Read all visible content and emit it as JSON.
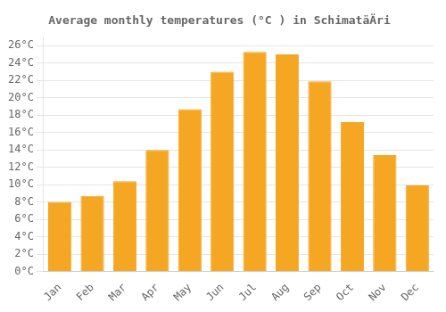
{
  "chart_data": {
    "type": "bar",
    "title": "Average monthly temperatures (°C ) in SchimatäÄri",
    "categories": [
      "Jan",
      "Feb",
      "Mar",
      "Apr",
      "May",
      "Jun",
      "Jul",
      "Aug",
      "Sep",
      "Oct",
      "Nov",
      "Dec"
    ],
    "values": [
      8.0,
      8.7,
      10.4,
      14.0,
      18.7,
      23.0,
      25.3,
      25.0,
      21.9,
      17.2,
      13.4,
      9.9
    ],
    "color": "#F5A623",
    "ylim": [
      0,
      27
    ],
    "yticks": [
      {
        "value": 0,
        "label": "0°C"
      },
      {
        "value": 2,
        "label": "2°C"
      },
      {
        "value": 4,
        "label": "4°C"
      },
      {
        "value": 6,
        "label": "6°C"
      },
      {
        "value": 8,
        "label": "8°C"
      },
      {
        "value": 10,
        "label": "10°C"
      },
      {
        "value": 12,
        "label": "12°C"
      },
      {
        "value": 14,
        "label": "14°C"
      },
      {
        "value": 16,
        "label": "16°C"
      },
      {
        "value": 18,
        "label": "18°C"
      },
      {
        "value": 20,
        "label": "20°C"
      },
      {
        "value": 22,
        "label": "22°C"
      },
      {
        "value": 24,
        "label": "24°C"
      },
      {
        "value": 26,
        "label": "26°C"
      }
    ],
    "grid": true
  }
}
